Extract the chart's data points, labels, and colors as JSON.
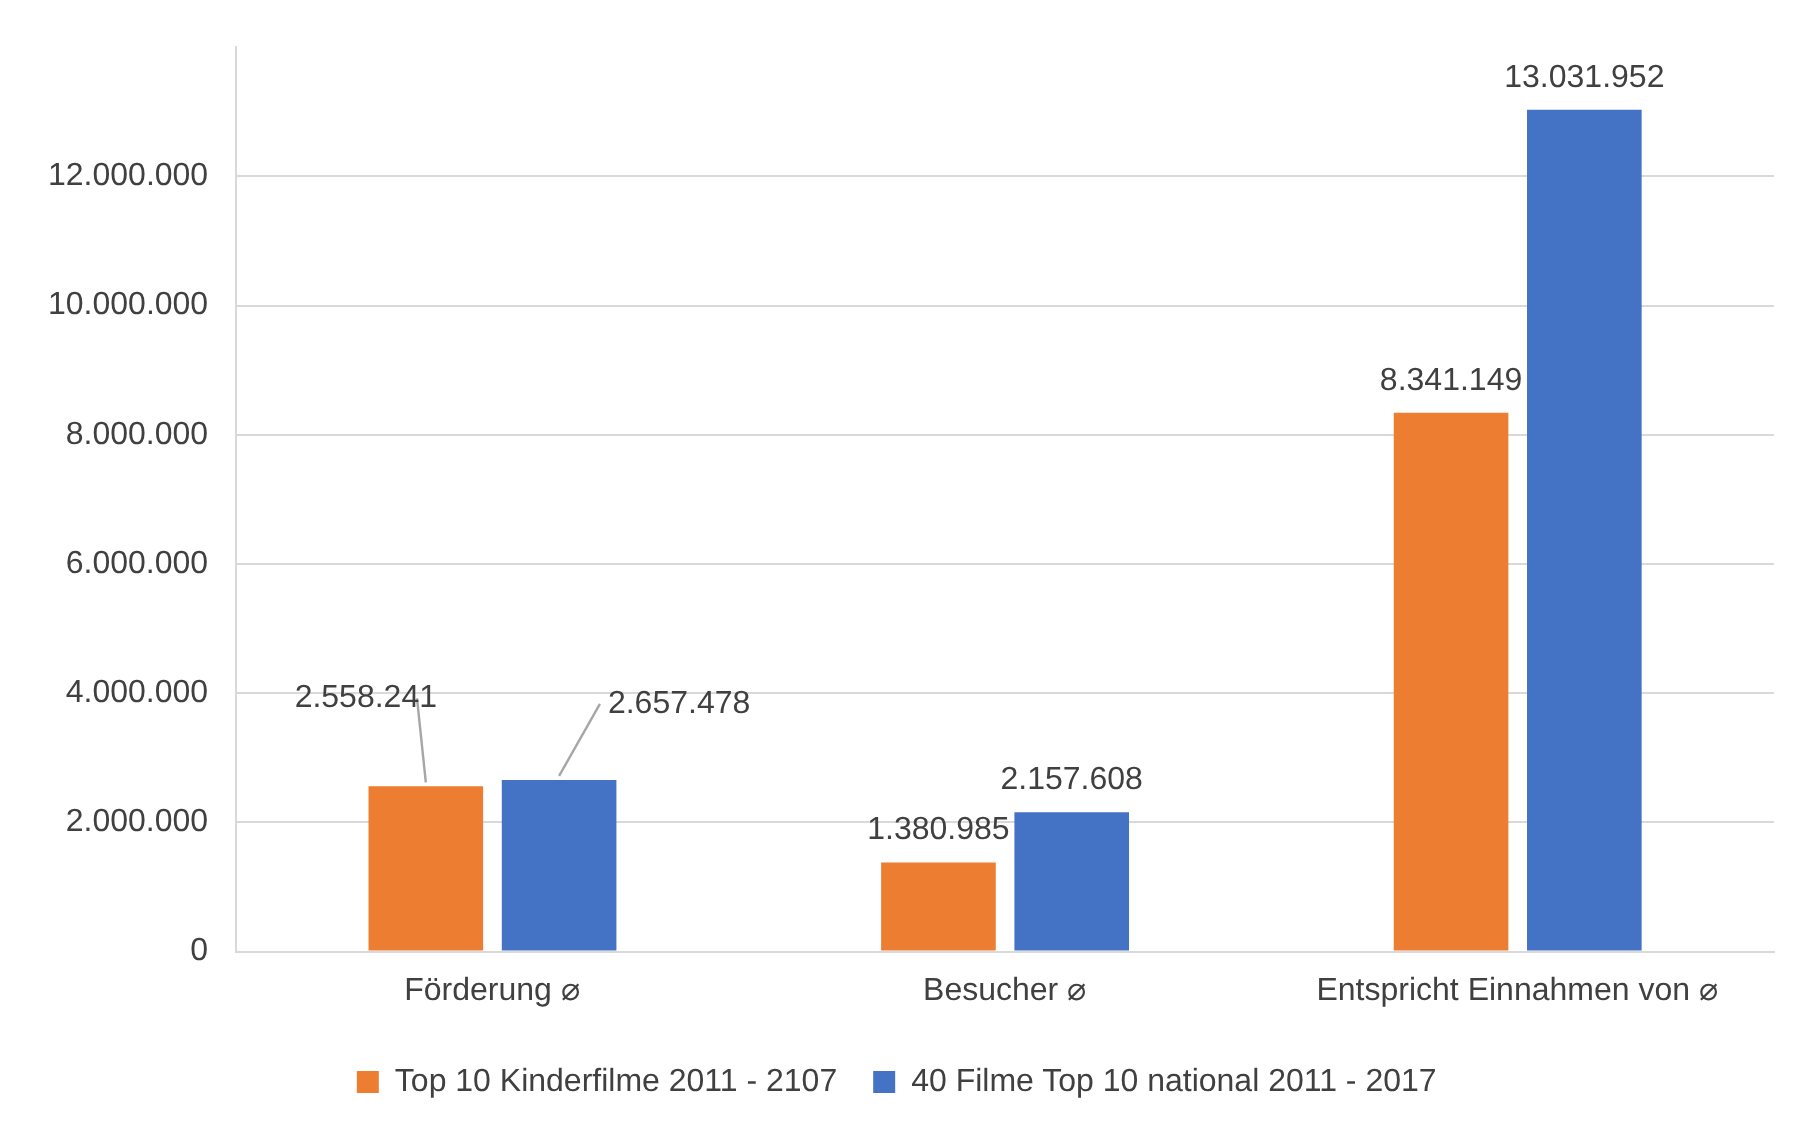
{
  "chart_data": {
    "type": "bar",
    "categories": [
      "Förderung ⌀",
      "Besucher ⌀",
      "Entspricht Einnahmen von ⌀"
    ],
    "series": [
      {
        "name": "Top 10 Kinderfilme 2011 - 2107",
        "color": "#ed7d31",
        "values": [
          2558241,
          1380985,
          8341149
        ],
        "value_labels": [
          "2.558.241",
          "1.380.985",
          "8.341.149"
        ]
      },
      {
        "name": "40 Filme Top 10 national 2011 - 2017",
        "color": "#4472c4",
        "values": [
          2657478,
          2157608,
          13031952
        ],
        "value_labels": [
          "2.657.478",
          "2.157.608",
          "13.031.952"
        ]
      }
    ],
    "ylim": [
      0,
      14000000
    ],
    "yticks": [
      0,
      {
        "value": 2000000,
        "label": "2.000.000"
      },
      {
        "value": 4000000,
        "label": "4.000.000"
      },
      {
        "value": 6000000,
        "label": "6.000.000"
      },
      {
        "value": 8000000,
        "label": "8.000.000"
      },
      {
        "value": 10000000,
        "label": "10.000.000"
      },
      {
        "value": 12000000,
        "label": "12.000.000"
      }
    ],
    "grid": "y",
    "legend": "bottom"
  }
}
